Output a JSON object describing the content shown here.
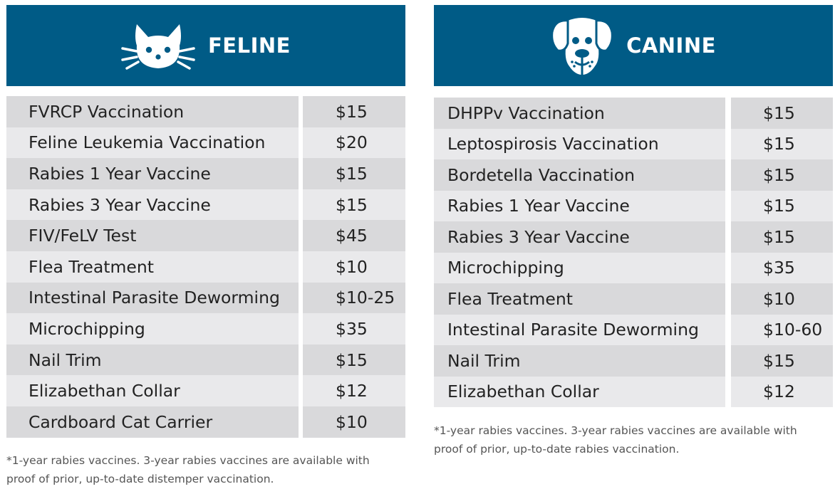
{
  "colors": {
    "header_bg": "#005b86",
    "header_text": "#ffffff",
    "row_dark": "#d9d9db",
    "row_light": "#e9e9eb"
  },
  "feline": {
    "icon": "cat-face-icon",
    "title": "FELINE",
    "items": [
      {
        "name": "FVRCP Vaccination",
        "price": "$15"
      },
      {
        "name": "Feline Leukemia Vaccination",
        "price": "$20"
      },
      {
        "name": "Rabies 1 Year Vaccine",
        "price": "$15"
      },
      {
        "name": "Rabies 3 Year Vaccine",
        "price": "$15"
      },
      {
        "name": "FIV/FeLV Test",
        "price": "$45"
      },
      {
        "name": "Flea Treatment",
        "price": "$10"
      },
      {
        "name": "Intestinal Parasite Deworming",
        "price": "$10-25"
      },
      {
        "name": "Microchipping",
        "price": "$35"
      },
      {
        "name": "Nail Trim",
        "price": "$15"
      },
      {
        "name": "Elizabethan Collar",
        "price": "$12"
      },
      {
        "name": "Cardboard Cat Carrier",
        "price": "$10"
      }
    ],
    "footnote_line1": "*1-year rabies vaccines. 3-year rabies vaccines are available with",
    "footnote_line2": "proof of prior, up-to-date distemper vaccination."
  },
  "canine": {
    "icon": "dog-face-icon",
    "title": "CANINE",
    "items": [
      {
        "name": "DHPPv Vaccination",
        "price": "$15"
      },
      {
        "name": "Leptospirosis Vaccination",
        "price": "$15"
      },
      {
        "name": "Bordetella Vaccination",
        "price": "$15"
      },
      {
        "name": "Rabies 1 Year Vaccine",
        "price": "$15"
      },
      {
        "name": "Rabies 3 Year Vaccine",
        "price": "$15"
      },
      {
        "name": "Microchipping",
        "price": "$35"
      },
      {
        "name": "Flea Treatment",
        "price": "$10"
      },
      {
        "name": "Intestinal Parasite Deworming",
        "price": "$10-60"
      },
      {
        "name": "Nail Trim",
        "price": "$15"
      },
      {
        "name": "Elizabethan Collar",
        "price": "$12"
      }
    ],
    "footnote_line1": "*1-year rabies vaccines. 3-year rabies vaccines are available with",
    "footnote_line2": "proof of prior, up-to-date rabies vaccination."
  }
}
